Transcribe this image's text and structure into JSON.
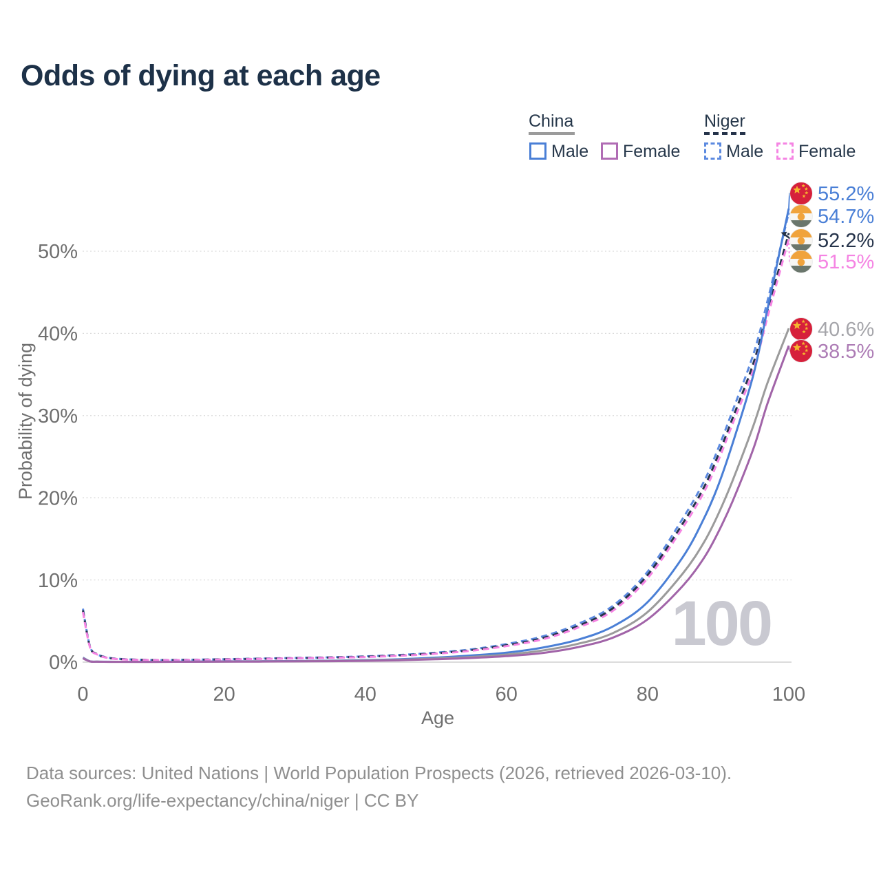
{
  "title": "Odds of dying at each age",
  "watermark": "100",
  "footer": {
    "line1": "Data sources: United Nations | World Population Prospects (2026, retrieved 2026-03-10).",
    "line2": "GeoRank.org/life-expectancy/china/niger | CC BY"
  },
  "legend": {
    "china": {
      "label": "China",
      "line_color": "#9b9b9b",
      "line_style": "solid",
      "items": [
        {
          "label": "Male",
          "color": "#4a7fd6",
          "style": "solid"
        },
        {
          "label": "Female",
          "color": "#b06cb4",
          "style": "solid"
        }
      ]
    },
    "niger": {
      "label": "Niger",
      "line_color": "#25334a",
      "line_style": "dashed",
      "items": [
        {
          "label": "Male",
          "color": "#5c8ae0",
          "style": "dashed"
        },
        {
          "label": "Female",
          "color": "#f584e3",
          "style": "dashed"
        }
      ]
    }
  },
  "chart_data": {
    "type": "line",
    "title": "Odds of dying at each age",
    "xlabel": "Age",
    "ylabel": "Probability of dying",
    "x_ticks": [
      0,
      20,
      40,
      60,
      80,
      100
    ],
    "y_ticks": [
      "0%",
      "10%",
      "20%",
      "30%",
      "40%",
      "50%"
    ],
    "xlim": [
      0,
      100
    ],
    "ylim_pct": [
      0,
      57
    ],
    "grid": "horizontal-dotted",
    "legend_position": "top-right",
    "ages": [
      0,
      1,
      2,
      3,
      5,
      10,
      15,
      20,
      25,
      30,
      35,
      40,
      45,
      50,
      55,
      60,
      65,
      70,
      75,
      80,
      85,
      88,
      90,
      92,
      95,
      97,
      100
    ],
    "series": [
      {
        "name": "Niger Male",
        "country": "Niger",
        "sex": "Male",
        "style": "dashed",
        "color": "#5c8ae0",
        "final_value_pct": 54.7,
        "values": [
          6.5,
          1.9,
          1.0,
          0.65,
          0.4,
          0.26,
          0.29,
          0.36,
          0.43,
          0.51,
          0.59,
          0.7,
          0.88,
          1.15,
          1.55,
          2.2,
          3.1,
          4.6,
          6.8,
          11.0,
          17.5,
          22.0,
          26.0,
          30.5,
          37.5,
          44.0,
          54.7
        ]
      },
      {
        "name": "Niger Both sexes",
        "country": "Niger",
        "sex": "Both",
        "style": "dashed",
        "color": "#25334a",
        "final_value_pct": 52.2,
        "values": [
          6.3,
          1.85,
          0.97,
          0.62,
          0.38,
          0.25,
          0.27,
          0.34,
          0.41,
          0.48,
          0.56,
          0.66,
          0.83,
          1.08,
          1.46,
          2.05,
          2.9,
          4.35,
          6.5,
          10.6,
          16.9,
          21.3,
          25.2,
          29.6,
          36.4,
          42.8,
          52.2
        ]
      },
      {
        "name": "Niger Female",
        "country": "Niger",
        "sex": "Female",
        "style": "dashed",
        "color": "#f584e3",
        "final_value_pct": 51.5,
        "values": [
          6.1,
          1.8,
          0.94,
          0.6,
          0.36,
          0.24,
          0.26,
          0.32,
          0.39,
          0.46,
          0.53,
          0.62,
          0.78,
          1.02,
          1.38,
          1.95,
          2.75,
          4.15,
          6.2,
          10.2,
          16.4,
          20.7,
          24.5,
          28.9,
          35.6,
          42.0,
          51.5
        ]
      },
      {
        "name": "China Male",
        "country": "China",
        "sex": "Male",
        "style": "solid",
        "color": "#4a7fd6",
        "final_value_pct": 55.2,
        "values": [
          0.55,
          0.1,
          0.06,
          0.05,
          0.04,
          0.04,
          0.06,
          0.09,
          0.11,
          0.13,
          0.18,
          0.25,
          0.36,
          0.55,
          0.8,
          1.15,
          1.75,
          2.7,
          4.3,
          7.3,
          12.8,
          17.5,
          21.5,
          26.5,
          35.0,
          43.0,
          55.2
        ]
      },
      {
        "name": "China Both sexes",
        "country": "China",
        "sex": "Both",
        "style": "solid",
        "color": "#9b9b9b",
        "final_value_pct": 40.6,
        "values": [
          0.5,
          0.09,
          0.055,
          0.045,
          0.04,
          0.035,
          0.05,
          0.07,
          0.09,
          0.11,
          0.15,
          0.2,
          0.29,
          0.44,
          0.63,
          0.92,
          1.4,
          2.2,
          3.5,
          6.1,
          10.8,
          14.6,
          18.0,
          22.0,
          28.8,
          34.0,
          40.6
        ]
      },
      {
        "name": "China Female",
        "country": "China",
        "sex": "Female",
        "style": "solid",
        "color": "#a164a8",
        "final_value_pct": 38.5,
        "values": [
          0.46,
          0.085,
          0.05,
          0.04,
          0.035,
          0.03,
          0.04,
          0.055,
          0.07,
          0.09,
          0.12,
          0.16,
          0.23,
          0.35,
          0.5,
          0.73,
          1.1,
          1.8,
          2.95,
          5.2,
          9.3,
          12.7,
          15.8,
          19.5,
          26.0,
          31.5,
          38.5
        ]
      }
    ],
    "end_labels": [
      {
        "text": "55.2%",
        "value_pct": 55.2,
        "flag": "china",
        "color": "#4a7fd6",
        "series": "China Male"
      },
      {
        "text": "54.7%",
        "value_pct": 54.7,
        "flag": "niger",
        "color": "#4a7fd6",
        "series": "Niger Male"
      },
      {
        "text": "52.2%",
        "value_pct": 52.2,
        "flag": "niger",
        "color": "#25334a",
        "series": "Niger Both sexes"
      },
      {
        "text": "51.5%",
        "value_pct": 51.5,
        "flag": "niger",
        "color": "#f584e3",
        "series": "Niger Female"
      },
      {
        "text": "40.6%",
        "value_pct": 40.6,
        "flag": "china",
        "color": "#a5a5aa",
        "series": "China Both sexes"
      },
      {
        "text": "38.5%",
        "value_pct": 38.5,
        "flag": "china",
        "color": "#ad7cb5",
        "series": "China Female"
      }
    ],
    "flag_colors": {
      "china": {
        "field": "#d6203b",
        "stars": "#f5b52e"
      },
      "niger": {
        "top": "#f0a33c",
        "middle": "#f7f6f3",
        "bottom": "#6a766c",
        "dot": "#f0a33c"
      }
    }
  }
}
